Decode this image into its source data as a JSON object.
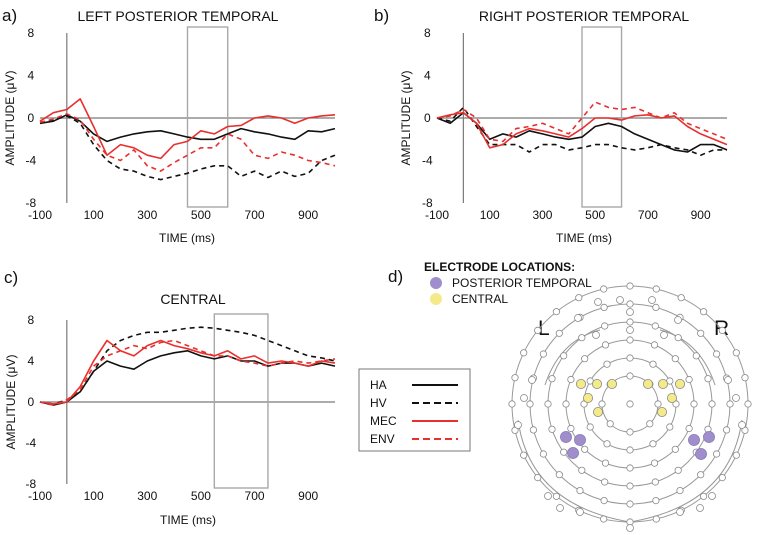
{
  "chart_data": [
    {
      "type": "line",
      "panel_label": "a)",
      "title": "LEFT POSTERIOR TEMPORAL",
      "xlabel": "TIME (ms)",
      "ylabel": "AMPLITUDE (μV)",
      "xlim": [
        -100,
        1000
      ],
      "ylim": [
        -8,
        8
      ],
      "xticks": [
        "-100",
        "100",
        "300",
        "500",
        "700",
        "900"
      ],
      "yticks": [
        "8",
        "4",
        "0",
        "-4",
        "-8"
      ],
      "highlight_window": [
        450,
        600
      ],
      "series": [
        {
          "name": "HA",
          "x": [
            -100,
            -50,
            0,
            50,
            100,
            150,
            200,
            250,
            300,
            350,
            400,
            450,
            500,
            550,
            600,
            650,
            700,
            750,
            800,
            850,
            900,
            950,
            1000
          ],
          "values": [
            -0.5,
            -0.3,
            0.3,
            -0.3,
            -1.5,
            -2.2,
            -1.8,
            -1.5,
            -1.3,
            -1.2,
            -1.5,
            -1.8,
            -2,
            -2,
            -1.5,
            -1,
            -1.3,
            -1.5,
            -1.8,
            -2,
            -1.2,
            -1.3,
            -1
          ]
        },
        {
          "name": "HV",
          "x": [
            -100,
            -50,
            0,
            50,
            100,
            150,
            200,
            250,
            300,
            350,
            400,
            450,
            500,
            550,
            600,
            650,
            700,
            750,
            800,
            850,
            900,
            950,
            1000
          ],
          "values": [
            -0.5,
            -0.2,
            0.2,
            -0.5,
            -2.5,
            -4,
            -4.8,
            -5,
            -5.5,
            -5.8,
            -5.5,
            -5.2,
            -4.8,
            -4.5,
            -4.5,
            -5.5,
            -5,
            -5.6,
            -5,
            -5.5,
            -5.2,
            -4,
            -3.5
          ]
        },
        {
          "name": "MEC",
          "x": [
            -100,
            -50,
            0,
            50,
            100,
            150,
            200,
            250,
            300,
            350,
            400,
            450,
            500,
            550,
            600,
            650,
            700,
            750,
            800,
            850,
            900,
            950,
            1000
          ],
          "values": [
            -0.3,
            0.5,
            0.8,
            1.8,
            -0.8,
            -3.5,
            -2.5,
            -2.8,
            -3.5,
            -3.8,
            -2.5,
            -2.2,
            -1.2,
            -1.5,
            -0.8,
            -0.7,
            0,
            0.2,
            0,
            -0.5,
            0,
            0.2,
            0.3
          ]
        },
        {
          "name": "ENV",
          "x": [
            -100,
            -50,
            0,
            50,
            100,
            150,
            200,
            250,
            300,
            350,
            400,
            450,
            500,
            550,
            600,
            650,
            700,
            750,
            800,
            850,
            900,
            950,
            1000
          ],
          "values": [
            -0.4,
            -0.1,
            0.4,
            -0.2,
            -2,
            -3.5,
            -4,
            -3,
            -4.5,
            -5,
            -4.2,
            -3.5,
            -2.8,
            -2.8,
            -1.5,
            -2,
            -3.5,
            -3.8,
            -3.2,
            -3.5,
            -4,
            -4.2,
            -4.5
          ]
        }
      ]
    },
    {
      "type": "line",
      "panel_label": "b)",
      "title": "RIGHT POSTERIOR TEMPORAL",
      "xlabel": "TIME (ms)",
      "ylabel": "AMPLITUDE (μV)",
      "xlim": [
        -100,
        1000
      ],
      "ylim": [
        -8,
        8
      ],
      "xticks": [
        "-100",
        "100",
        "300",
        "500",
        "700",
        "900"
      ],
      "yticks": [
        "8",
        "4",
        "0",
        "-4",
        "-8"
      ],
      "highlight_window": [
        450,
        600
      ],
      "series": [
        {
          "name": "HA",
          "x": [
            -100,
            -50,
            0,
            50,
            100,
            150,
            200,
            250,
            300,
            350,
            400,
            450,
            500,
            550,
            600,
            650,
            700,
            750,
            800,
            850,
            900,
            950,
            1000
          ],
          "values": [
            0,
            -0.5,
            0.5,
            -0.5,
            -2,
            -1.5,
            -1.8,
            -1.2,
            -1.5,
            -1.8,
            -2,
            -1.8,
            -0.8,
            -0.5,
            -0.8,
            -1.5,
            -2,
            -2.5,
            -3,
            -3.2,
            -2.5,
            -2.5,
            -3
          ]
        },
        {
          "name": "HV",
          "x": [
            -100,
            -50,
            0,
            50,
            100,
            150,
            200,
            250,
            300,
            350,
            400,
            450,
            500,
            550,
            600,
            650,
            700,
            750,
            800,
            850,
            900,
            950,
            1000
          ],
          "values": [
            0,
            -0.3,
            1,
            -0.8,
            -2.5,
            -2.5,
            -2.5,
            -3.2,
            -2.5,
            -2.5,
            -3,
            -2.8,
            -2.5,
            -2.5,
            -2.8,
            -3,
            -2.8,
            -2.5,
            -2.8,
            -3,
            -3.5,
            -3,
            -3
          ]
        },
        {
          "name": "MEC",
          "x": [
            -100,
            -50,
            0,
            50,
            100,
            150,
            200,
            250,
            300,
            350,
            400,
            450,
            500,
            550,
            600,
            650,
            700,
            750,
            800,
            850,
            900,
            950,
            1000
          ],
          "values": [
            0,
            0.3,
            0.5,
            -0.5,
            -2.8,
            -2.5,
            -1.5,
            -1,
            -1.2,
            -1.5,
            -1.8,
            -1,
            0,
            0,
            -0.2,
            0.2,
            0.3,
            0,
            0.2,
            -0.8,
            -1.5,
            -2,
            -2.5
          ]
        },
        {
          "name": "ENV",
          "x": [
            -100,
            -50,
            0,
            50,
            100,
            150,
            200,
            250,
            300,
            350,
            400,
            450,
            500,
            550,
            600,
            650,
            700,
            750,
            800,
            850,
            900,
            950,
            1000
          ],
          "values": [
            0,
            0.2,
            0.8,
            0,
            -2,
            -2.2,
            -1,
            -0.8,
            -0.5,
            -1,
            -1.5,
            0,
            1.5,
            1,
            0.8,
            1,
            0.5,
            0,
            0.5,
            -0.5,
            -1,
            -1.5,
            -2
          ]
        }
      ]
    },
    {
      "type": "line",
      "panel_label": "c)",
      "title": "CENTRAL",
      "xlabel": "TIME (ms)",
      "ylabel": "AMPLITUDE (μV)",
      "xlim": [
        -100,
        1000
      ],
      "ylim": [
        -8,
        8
      ],
      "xticks": [
        "-100",
        "100",
        "300",
        "500",
        "700",
        "900"
      ],
      "yticks": [
        "8",
        "4",
        "0",
        "-4",
        "-8"
      ],
      "highlight_window": [
        550,
        750
      ],
      "series": [
        {
          "name": "HA",
          "x": [
            -100,
            -50,
            0,
            50,
            100,
            150,
            200,
            250,
            300,
            350,
            400,
            450,
            500,
            550,
            600,
            650,
            700,
            750,
            800,
            850,
            900,
            950,
            1000
          ],
          "values": [
            0,
            -0.3,
            0,
            1,
            3,
            4,
            3.5,
            3.2,
            4,
            4.5,
            4.8,
            5,
            4.5,
            4.2,
            4.5,
            4,
            4,
            3.5,
            3.8,
            3.8,
            3.5,
            3.8,
            3.5
          ]
        },
        {
          "name": "HV",
          "x": [
            -100,
            -50,
            0,
            50,
            100,
            150,
            200,
            250,
            300,
            350,
            400,
            450,
            500,
            550,
            600,
            650,
            700,
            750,
            800,
            850,
            900,
            950,
            1000
          ],
          "values": [
            0,
            -0.2,
            0.2,
            1,
            3,
            5,
            6,
            6.5,
            6.8,
            6.8,
            7,
            7.2,
            7.3,
            7.2,
            7,
            6.8,
            6.5,
            6,
            5.5,
            5,
            4.5,
            4.3,
            4
          ]
        },
        {
          "name": "MEC",
          "x": [
            -100,
            -50,
            0,
            50,
            100,
            150,
            200,
            250,
            300,
            350,
            400,
            450,
            500,
            550,
            600,
            650,
            700,
            750,
            800,
            850,
            900,
            950,
            1000
          ],
          "values": [
            0,
            -0.2,
            0,
            1.5,
            4,
            6,
            5,
            4.5,
            5.5,
            6,
            5.5,
            5.2,
            4.8,
            4.5,
            5,
            4.2,
            4.5,
            3.8,
            4,
            3.8,
            3.5,
            4,
            3.8
          ]
        },
        {
          "name": "ENV",
          "x": [
            -100,
            -50,
            0,
            50,
            100,
            150,
            200,
            250,
            300,
            350,
            400,
            450,
            500,
            550,
            600,
            650,
            700,
            750,
            800,
            850,
            900,
            950,
            1000
          ],
          "values": [
            0,
            -0.3,
            0.2,
            1.2,
            3.5,
            4.5,
            5,
            5.5,
            5.2,
            5.8,
            6,
            5.5,
            5,
            4.5,
            4.5,
            4,
            3.8,
            3.5,
            3.8,
            4,
            3.8,
            4,
            4.2
          ]
        }
      ]
    }
  ],
  "legend": [
    {
      "name": "HA",
      "color": "#111111",
      "dashed": false
    },
    {
      "name": "HV",
      "color": "#111111",
      "dashed": true
    },
    {
      "name": "MEC",
      "color": "#e8302e",
      "dashed": false
    },
    {
      "name": "ENV",
      "color": "#e8302e",
      "dashed": true
    }
  ],
  "colors": {
    "human": "#111111",
    "machine": "#e8302e",
    "window": "#a8a8a8",
    "axis": "#7a7a7a"
  },
  "electrodes": {
    "panel_label": "d)",
    "title": "ELECTRODE LOCATIONS:",
    "legend": [
      {
        "label": "POSTERIOR TEMPORAL",
        "color": "#9f8ecb"
      },
      {
        "label": "CENTRAL",
        "color": "#f5ea8a"
      }
    ],
    "left_label": "L",
    "right_label": "R"
  }
}
